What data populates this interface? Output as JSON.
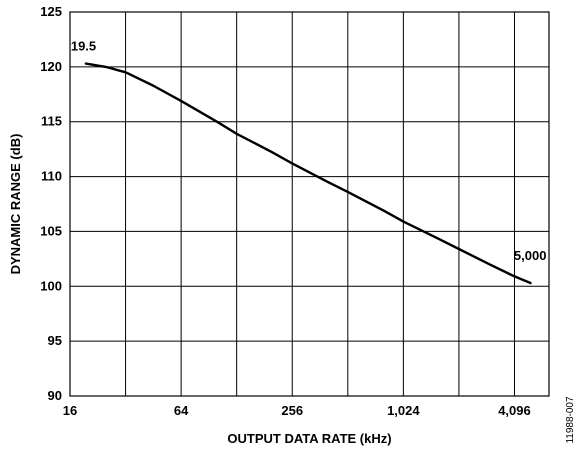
{
  "chart_data": {
    "type": "line",
    "xlabel": "OUTPUT DATA RATE (kHz)",
    "ylabel": "DYNAMIC RANGE (dB)",
    "x_scale": "log",
    "xlim": [
      16,
      6300
    ],
    "ylim": [
      90,
      125
    ],
    "x_ticks": [
      16,
      64,
      256,
      1024,
      4096
    ],
    "x_tick_labels": [
      "16",
      "64",
      "256",
      "1,024",
      "4,096"
    ],
    "x_minor_gridlines": [
      32,
      128,
      512,
      2048
    ],
    "y_ticks": [
      90,
      95,
      100,
      105,
      110,
      115,
      120,
      125
    ],
    "y_tick_labels": [
      "90",
      "95",
      "100",
      "105",
      "110",
      "115",
      "120",
      "125"
    ],
    "grid": true,
    "series": [
      {
        "x": [
          19.5,
          25,
          32,
          45,
          64,
          100,
          128,
          200,
          256,
          400,
          512,
          800,
          1024,
          1600,
          2048,
          3000,
          4096,
          5000
        ],
        "values": [
          120.3,
          120.0,
          119.5,
          118.3,
          116.9,
          115.0,
          113.9,
          112.2,
          111.2,
          109.5,
          108.6,
          106.9,
          105.9,
          104.3,
          103.4,
          102.0,
          100.9,
          100.3
        ]
      }
    ],
    "annotations": [
      {
        "text": "19.5",
        "x": 19.5,
        "y": 120.3
      },
      {
        "text": "5,000",
        "x": 5000,
        "y": 100.3
      }
    ]
  },
  "figure_id": "11988-007"
}
